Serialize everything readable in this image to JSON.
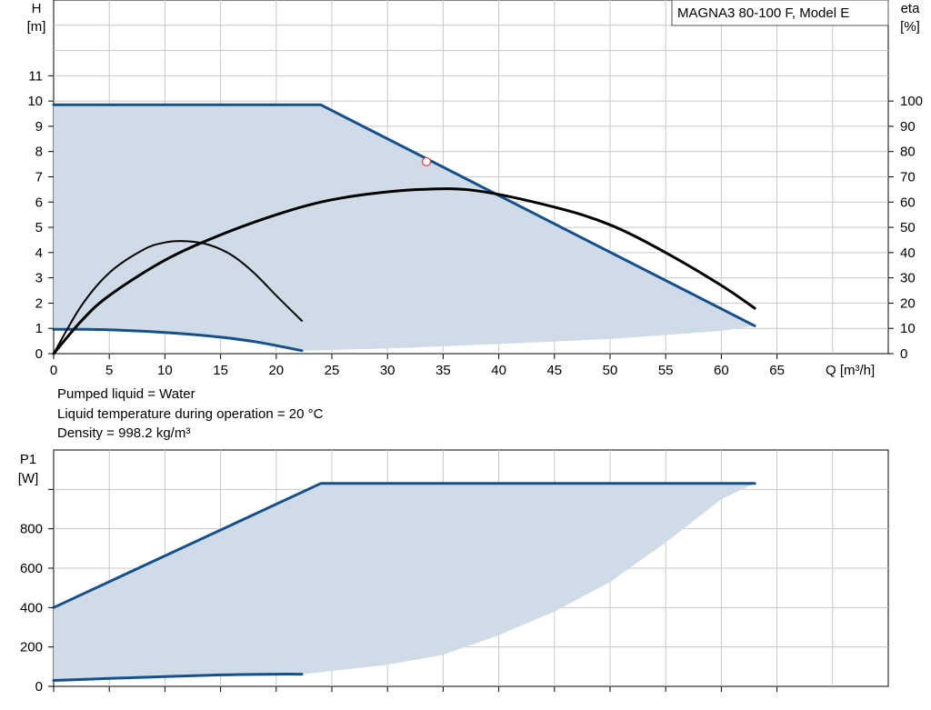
{
  "chart_data": [
    {
      "type": "line",
      "title": "MAGNA3 80-100 F, Model E",
      "x_axis": {
        "label": "Q [m³/h]",
        "range": [
          0,
          75
        ],
        "ticks": [
          0,
          5,
          10,
          15,
          20,
          25,
          30,
          35,
          40,
          45,
          50,
          55,
          60,
          65
        ]
      },
      "y_axis_left": {
        "label_top": "H",
        "label_unit": "[m]",
        "range": [
          0,
          14
        ],
        "ticks": [
          0,
          1,
          2,
          3,
          4,
          5,
          6,
          7,
          8,
          9,
          10,
          11
        ]
      },
      "y_axis_right": {
        "label_top": "eta",
        "label_unit": "[%]",
        "range": [
          0,
          140
        ],
        "ticks": [
          0,
          10,
          20,
          30,
          40,
          50,
          60,
          70,
          80,
          90,
          100
        ]
      },
      "grid": true,
      "operating_area": {
        "upper_boundary": {
          "x": [
            0,
            24,
            63
          ],
          "y": [
            9.85,
            9.85,
            1.1
          ]
        },
        "lower_boundary": {
          "x": [
            0,
            5,
            10,
            15,
            20,
            22.3,
            30,
            40,
            50,
            60,
            63
          ],
          "y": [
            0.96,
            0.95,
            0.84,
            0.62,
            0.31,
            0.12,
            0.2,
            0.38,
            0.58,
            0.9,
            1.1
          ]
        }
      },
      "series": [
        {
          "role": "max_head_curve",
          "color": "#15508a",
          "x": [
            0,
            24,
            63
          ],
          "y": [
            9.85,
            9.85,
            1.1
          ]
        },
        {
          "role": "min_head_curve",
          "color": "#15508a",
          "x": [
            0,
            3,
            6,
            10,
            14,
            18,
            22.3
          ],
          "y": [
            0.96,
            0.96,
            0.93,
            0.84,
            0.7,
            0.48,
            0.12
          ]
        },
        {
          "role": "efficiency_max_curve",
          "axis": "right",
          "color": "#000000",
          "x": [
            0,
            2.5,
            5,
            10,
            15,
            20,
            24,
            28,
            33,
            38,
            45,
            50,
            55,
            60,
            63
          ],
          "y": [
            0,
            13,
            23,
            37,
            47,
            55,
            60,
            63,
            65,
            64.5,
            58,
            51,
            40,
            27,
            18
          ]
        },
        {
          "role": "efficiency_min_curve",
          "axis": "right",
          "color": "#000000",
          "x": [
            0,
            2.5,
            5,
            8,
            10,
            12,
            14,
            16,
            18,
            20,
            22.3
          ],
          "y": [
            0,
            19,
            32,
            41,
            44,
            44.5,
            43,
            39,
            32,
            23,
            13
          ]
        }
      ],
      "marker": {
        "x": 33.5,
        "y": 7.6,
        "color": "#e03a3a"
      }
    },
    {
      "type": "line",
      "x_axis": {
        "range": [
          0,
          75
        ],
        "ticks": []
      },
      "y_axis": {
        "label_top": "P1",
        "label_unit": "[W]",
        "range": [
          0,
          1200
        ],
        "ticks": [
          0,
          200,
          400,
          600,
          800
        ]
      },
      "grid": true,
      "operating_area": {
        "upper_boundary": {
          "x": [
            0,
            24,
            63
          ],
          "y": [
            400,
            1030,
            1030
          ]
        },
        "lower_boundary": {
          "x": [
            0,
            10,
            22.3,
            30,
            35,
            40,
            45,
            50,
            55,
            60,
            63
          ],
          "y": [
            30,
            50,
            62,
            110,
            160,
            260,
            380,
            530,
            730,
            950,
            1030
          ]
        }
      },
      "series": [
        {
          "role": "max_power_curve",
          "color": "#15508a",
          "x": [
            0,
            24,
            63
          ],
          "y": [
            400,
            1030,
            1030
          ]
        },
        {
          "role": "min_power_curve",
          "color": "#15508a",
          "x": [
            0,
            5,
            10,
            15,
            20,
            22.3
          ],
          "y": [
            30,
            40,
            50,
            58,
            62,
            62
          ]
        }
      ]
    }
  ],
  "info_lines": [
    "Pumped liquid = Water",
    "Liquid temperature during operation = 20 °C",
    "Density = 998.2 kg/m³"
  ],
  "colors": {
    "area_fill": "#cfdbe7",
    "curve_blue": "#15508a",
    "efficiency": "#000000",
    "grid": "#c8c8c8",
    "marker": "#e03a3a"
  }
}
